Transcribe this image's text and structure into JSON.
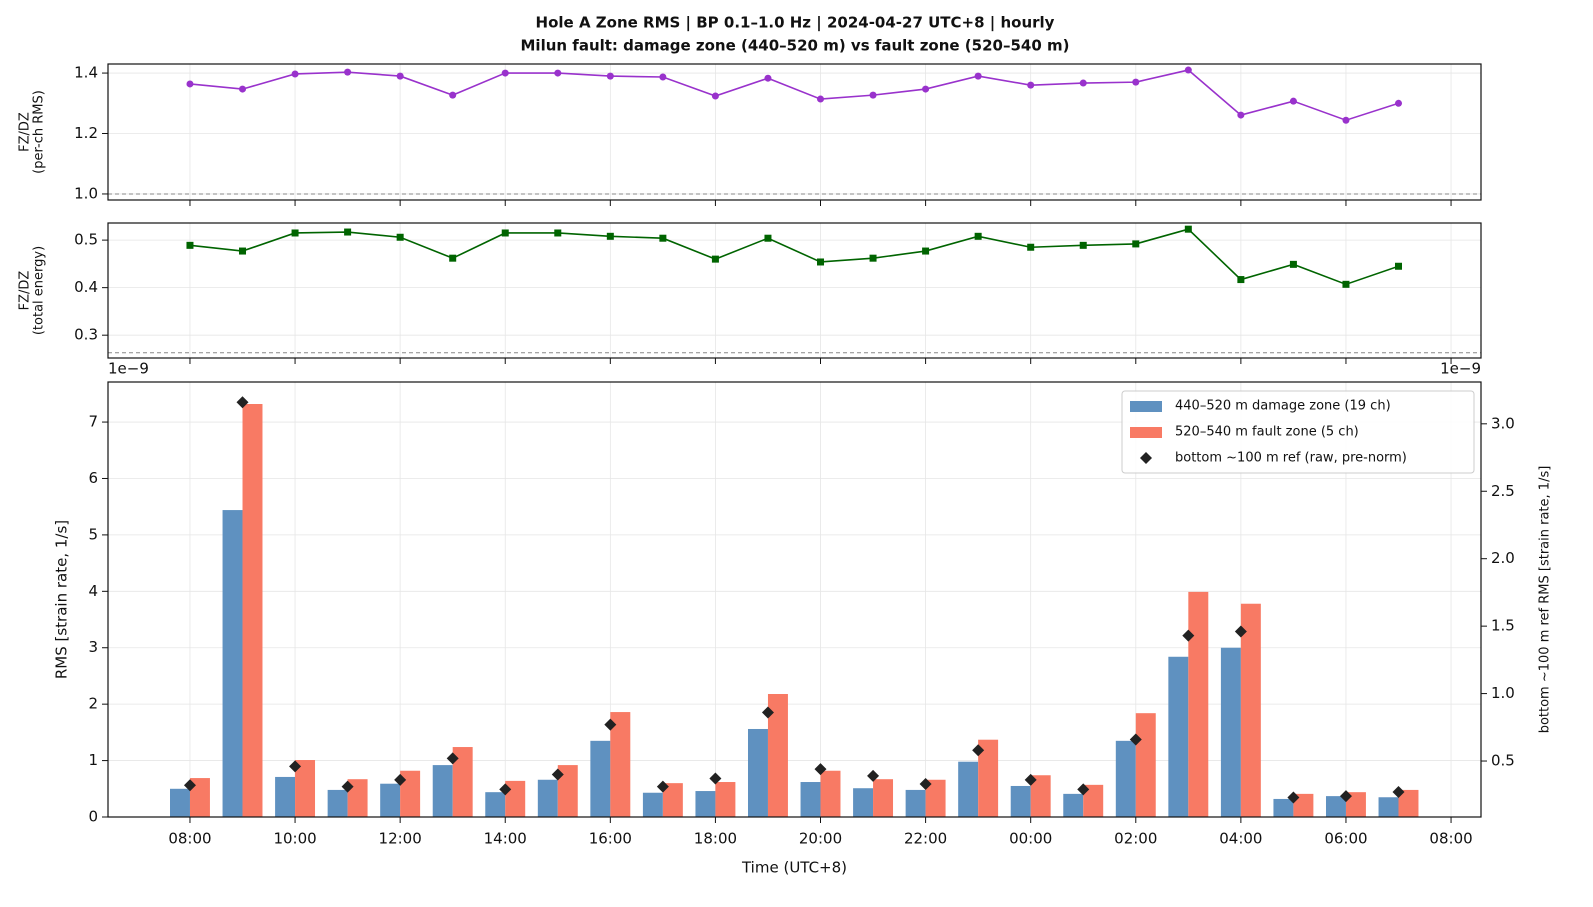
{
  "suptitle": [
    "Hole A Zone RMS  |  BP 0.1–1.0 Hz  |  2024-04-27 UTC+8  |  hourly",
    "Milun fault: damage zone (440–520 m) vs fault zone (520–540 m)"
  ],
  "chart_data": [
    {
      "type": "line",
      "ylabel": [
        "FZ/DZ",
        "(per-ch RMS)"
      ],
      "x": [
        0,
        1,
        2,
        3,
        4,
        5,
        6,
        7,
        8,
        9,
        10,
        11,
        12,
        13,
        14,
        15,
        16,
        17,
        18,
        19,
        20,
        21,
        22,
        23
      ],
      "xlim": [
        -1.56,
        24.57
      ],
      "xticks": [
        0,
        2,
        4,
        6,
        8,
        10,
        12,
        14,
        16,
        18,
        20,
        22,
        24
      ],
      "ylim": [
        0.98,
        1.43
      ],
      "yticks": [
        {
          "value": 1.0,
          "label": "1.0"
        },
        1.2,
        1.4
      ],
      "hline": 1.0,
      "grid": true,
      "series": [
        {
          "color": "#9932cc",
          "marker": "circle",
          "values": [
            1.364,
            1.347,
            1.397,
            1.403,
            1.39,
            1.327,
            1.4,
            1.4,
            1.39,
            1.387,
            1.324,
            1.383,
            1.314,
            1.327,
            1.347,
            1.39,
            1.36,
            1.367,
            1.37,
            1.41,
            1.261,
            1.307,
            1.244,
            1.3
          ]
        }
      ]
    },
    {
      "type": "line",
      "ylabel": [
        "FZ/DZ",
        "(total energy)"
      ],
      "x": [
        0,
        1,
        2,
        3,
        4,
        5,
        6,
        7,
        8,
        9,
        10,
        11,
        12,
        13,
        14,
        15,
        16,
        17,
        18,
        19,
        20,
        21,
        22,
        23
      ],
      "xlim": [
        -1.56,
        24.57
      ],
      "xticks": [
        0,
        2,
        4,
        6,
        8,
        10,
        12,
        14,
        16,
        18,
        20,
        22,
        24
      ],
      "ylim": [
        0.252,
        0.536
      ],
      "yticks": [
        0.3,
        0.4,
        0.5
      ],
      "hline": 0.263,
      "grid": true,
      "series": [
        {
          "color": "#006400",
          "marker": "square",
          "values": [
            0.489,
            0.477,
            0.515,
            0.517,
            0.506,
            0.462,
            0.515,
            0.515,
            0.508,
            0.504,
            0.46,
            0.504,
            0.454,
            0.462,
            0.477,
            0.508,
            0.485,
            0.489,
            0.492,
            0.523,
            0.417,
            0.449,
            0.407,
            0.445
          ]
        }
      ]
    },
    {
      "type": "bar",
      "xlabel": "Time (UTC+8)",
      "ylabel": [
        "RMS  [strain rate, 1/s]"
      ],
      "y2label": "bottom ~100 m ref RMS  [strain rate, 1/s]",
      "y_offset": "1e−9",
      "y2_offset": "1e−9",
      "x": [
        0,
        1,
        2,
        3,
        4,
        5,
        6,
        7,
        8,
        9,
        10,
        11,
        12,
        13,
        14,
        15,
        16,
        17,
        18,
        19,
        20,
        21,
        22,
        23
      ],
      "xlim": [
        -1.56,
        24.57
      ],
      "xticks": [
        {
          "value": 0,
          "label": "08:00"
        },
        {
          "value": 2,
          "label": "10:00"
        },
        {
          "value": 4,
          "label": "12:00"
        },
        {
          "value": 6,
          "label": "14:00"
        },
        {
          "value": 8,
          "label": "16:00"
        },
        {
          "value": 10,
          "label": "18:00"
        },
        {
          "value": 12,
          "label": "20:00"
        },
        {
          "value": 14,
          "label": "22:00"
        },
        {
          "value": 16,
          "label": "00:00"
        },
        {
          "value": 18,
          "label": "02:00"
        },
        {
          "value": 20,
          "label": "04:00"
        },
        {
          "value": 22,
          "label": "06:00"
        },
        {
          "value": 24,
          "label": "08:00"
        }
      ],
      "ylim": [
        0,
        7.71
      ],
      "yticks": [
        0,
        1,
        2,
        3,
        4,
        5,
        6,
        7
      ],
      "y2lim": [
        0.085,
        3.31
      ],
      "y2ticks": [
        0.5,
        {
          "value": 1.0,
          "label": "1.0"
        },
        1.5,
        {
          "value": 2.0,
          "label": "2.0"
        },
        2.5,
        {
          "value": 3.0,
          "label": "3.0"
        }
      ],
      "grid": true,
      "legend": "upper right",
      "series": [
        {
          "name": "440–520 m  damage zone (19 ch)",
          "color": "#5f91c0",
          "values": [
            0.5,
            5.44,
            0.71,
            0.48,
            0.59,
            0.92,
            0.44,
            0.66,
            1.35,
            0.43,
            0.46,
            1.56,
            0.62,
            0.51,
            0.48,
            0.98,
            0.55,
            0.41,
            1.35,
            2.84,
            3.0,
            0.32,
            0.37,
            0.35
          ]
        },
        {
          "name": "520–540 m  fault zone (5 ch)",
          "color": "#f87a64",
          "values": [
            0.69,
            7.32,
            1.01,
            0.67,
            0.82,
            1.24,
            0.64,
            0.92,
            1.86,
            0.6,
            0.62,
            2.18,
            0.82,
            0.67,
            0.66,
            1.37,
            0.74,
            0.57,
            1.84,
            3.99,
            3.78,
            0.41,
            0.44,
            0.48
          ]
        },
        {
          "name": "bottom ~100 m ref (raw, pre-norm)",
          "color": "#222222",
          "marker": "diamond",
          "axis": "y2",
          "values": [
            0.32,
            3.16,
            0.46,
            0.31,
            0.36,
            0.52,
            0.29,
            0.4,
            0.77,
            0.31,
            0.37,
            0.86,
            0.44,
            0.39,
            0.33,
            0.58,
            0.36,
            0.29,
            0.66,
            1.43,
            1.46,
            0.23,
            0.24,
            0.27
          ]
        }
      ]
    }
  ]
}
